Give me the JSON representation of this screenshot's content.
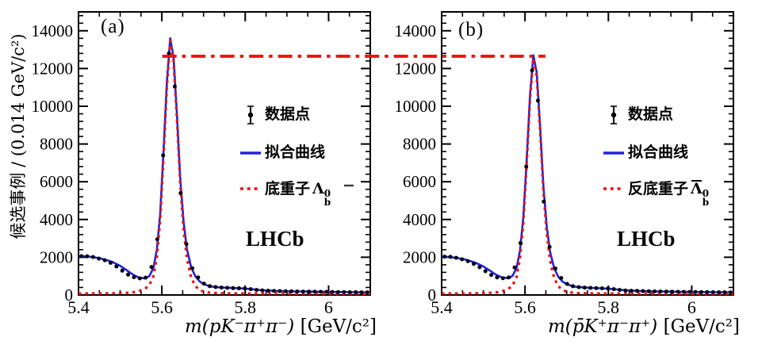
{
  "figure": {
    "background": "#ffffff",
    "frame_color": "#000000",
    "fit_blue": "#2222dd",
    "signal_red": "#ee1111",
    "data_black": "#000000"
  },
  "reference_line": {
    "style": "dash-dot",
    "color": "#ee1111",
    "y_value": 12650,
    "start": {
      "panel": 0,
      "x": 5.601
    },
    "end": {
      "panel": 1,
      "x": 5.649
    }
  },
  "chart_data": [
    {
      "type": "line",
      "panel_label": "(a)",
      "experiment": "LHCb",
      "xlabel_math": "m(pK⁻π⁺π⁻)",
      "xlabel_unit": " [GeV/c²]",
      "ylabel": "候选事例 / (0.014 GeV/c²)",
      "xlim": [
        5.4,
        6.1
      ],
      "ylim": [
        0,
        15000
      ],
      "x_major_ticks": [
        5.4,
        5.6,
        5.8,
        6.0
      ],
      "x_tick_labels": [
        "5.4",
        "5.6",
        "5.8",
        "6"
      ],
      "x_minor_step": 0.05,
      "y_major_step": 2000,
      "y_minor_step": 400,
      "grid": false,
      "legend_position": "center-right",
      "legend": [
        {
          "marker": "point-error",
          "color": "#000000",
          "label": "数据点"
        },
        {
          "marker": "solid-line",
          "color": "#2222dd",
          "label": "拟合曲线"
        },
        {
          "marker": "dotted-line",
          "color": "#ee1111",
          "label_prefix": "底重子",
          "symbol": "Λ",
          "symbol_sup": "0",
          "symbol_sub": "b",
          "symbol_bar": false
        }
      ],
      "series": [
        {
          "name": "fit_total",
          "style": "solid",
          "color": "#2222dd",
          "x": [
            5.4,
            5.42,
            5.44,
            5.46,
            5.48,
            5.5,
            5.515,
            5.53,
            5.545,
            5.56,
            5.57,
            5.58,
            5.588,
            5.596,
            5.604,
            5.612,
            5.62,
            5.628,
            5.636,
            5.644,
            5.652,
            5.66,
            5.67,
            5.68,
            5.69,
            5.7,
            5.715,
            5.73,
            5.75,
            5.77,
            5.79,
            5.81,
            5.83,
            5.85,
            5.88,
            5.91,
            5.95,
            6.0,
            6.05,
            6.1
          ],
          "y": [
            2060,
            2040,
            1990,
            1900,
            1760,
            1540,
            1320,
            1090,
            920,
            880,
            1000,
            1450,
            2400,
            4300,
            7600,
            11300,
            13600,
            12600,
            9600,
            6200,
            3900,
            2450,
            1500,
            1000,
            730,
            580,
            460,
            415,
            390,
            370,
            350,
            320,
            275,
            240,
            210,
            195,
            180,
            165,
            150,
            140
          ]
        },
        {
          "name": "signal_lambda_b",
          "style": "dotted",
          "color": "#ee1111",
          "x": [
            5.4,
            5.42,
            5.44,
            5.46,
            5.48,
            5.5,
            5.515,
            5.53,
            5.545,
            5.56,
            5.57,
            5.58,
            5.588,
            5.596,
            5.604,
            5.612,
            5.62,
            5.628,
            5.636,
            5.644,
            5.652,
            5.66,
            5.67,
            5.68,
            5.69,
            5.7,
            5.715,
            5.73,
            5.75,
            5.77,
            5.79,
            5.81,
            5.83,
            5.85,
            5.88,
            5.91,
            5.95,
            6.0,
            6.05,
            6.1
          ],
          "y": [
            80,
            80,
            82,
            85,
            90,
            100,
            115,
            140,
            200,
            330,
            520,
            1000,
            2000,
            3950,
            7300,
            11100,
            13450,
            12400,
            9400,
            5900,
            3500,
            1950,
            950,
            480,
            270,
            180,
            120,
            100,
            90,
            85,
            82,
            80,
            78,
            76,
            74,
            72,
            70,
            68,
            66,
            65
          ]
        },
        {
          "name": "data_points",
          "style": "points",
          "color": "#000000",
          "x": [
            5.407,
            5.421,
            5.435,
            5.449,
            5.463,
            5.477,
            5.491,
            5.505,
            5.519,
            5.533,
            5.547,
            5.561,
            5.575,
            5.589,
            5.603,
            5.617,
            5.631,
            5.645,
            5.659,
            5.673,
            5.687,
            5.701,
            5.715,
            5.729,
            5.743,
            5.757,
            5.771,
            5.785,
            5.799,
            5.813,
            5.827,
            5.841,
            5.855,
            5.869,
            5.883,
            5.897,
            5.911,
            5.925,
            5.939,
            5.953,
            5.967,
            5.981,
            5.995,
            6.009,
            6.023,
            6.037,
            6.051,
            6.065,
            6.079,
            6.093
          ],
          "y": [
            2060,
            2050,
            2010,
            1930,
            1840,
            1700,
            1510,
            1290,
            1080,
            940,
            880,
            920,
            1480,
            2950,
            7400,
            12800,
            11050,
            5400,
            2700,
            1420,
            930,
            600,
            470,
            420,
            395,
            380,
            365,
            355,
            345,
            310,
            270,
            240,
            225,
            215,
            205,
            198,
            192,
            186,
            181,
            176,
            171,
            167,
            162,
            158,
            154,
            151,
            148,
            145,
            142,
            140
          ]
        }
      ]
    },
    {
      "type": "line",
      "panel_label": "(b)",
      "experiment": "LHCb",
      "xlabel_math": "m(p̄K⁺π⁻π⁺)",
      "xlabel_unit": " [GeV/c²]",
      "ylabel": "",
      "xlim": [
        5.4,
        6.1
      ],
      "ylim": [
        0,
        15000
      ],
      "x_major_ticks": [
        5.4,
        5.6,
        5.8,
        6.0
      ],
      "x_tick_labels": [
        "5.4",
        "5.6",
        "5.8",
        "6"
      ],
      "x_minor_step": 0.05,
      "y_major_step": 2000,
      "y_minor_step": 400,
      "grid": false,
      "legend_position": "center-right",
      "legend": [
        {
          "marker": "point-error",
          "color": "#000000",
          "label": "数据点"
        },
        {
          "marker": "solid-line",
          "color": "#2222dd",
          "label": "拟合曲线"
        },
        {
          "marker": "dotted-line",
          "color": "#ee1111",
          "label_prefix": "反底重子",
          "symbol": "Λ",
          "symbol_sup": "0",
          "symbol_sub": "b",
          "symbol_bar": true
        }
      ],
      "series": [
        {
          "name": "fit_total",
          "style": "solid",
          "color": "#2222dd",
          "x": [
            5.4,
            5.42,
            5.44,
            5.46,
            5.48,
            5.5,
            5.515,
            5.53,
            5.545,
            5.56,
            5.57,
            5.58,
            5.588,
            5.596,
            5.604,
            5.612,
            5.62,
            5.628,
            5.636,
            5.644,
            5.652,
            5.66,
            5.67,
            5.68,
            5.69,
            5.7,
            5.715,
            5.73,
            5.75,
            5.77,
            5.79,
            5.81,
            5.83,
            5.85,
            5.88,
            5.91,
            5.95,
            6.0,
            6.05,
            6.1
          ],
          "y": [
            2030,
            2010,
            1950,
            1860,
            1720,
            1510,
            1300,
            1080,
            930,
            890,
            1010,
            1440,
            2350,
            4100,
            7100,
            10600,
            12700,
            11800,
            9000,
            5800,
            3650,
            2300,
            1420,
            960,
            710,
            570,
            455,
            410,
            385,
            365,
            345,
            315,
            270,
            238,
            208,
            193,
            178,
            163,
            149,
            139
          ]
        },
        {
          "name": "signal_antilambda_b",
          "style": "dotted",
          "color": "#ee1111",
          "x": [
            5.4,
            5.42,
            5.44,
            5.46,
            5.48,
            5.5,
            5.515,
            5.53,
            5.545,
            5.56,
            5.57,
            5.58,
            5.588,
            5.596,
            5.604,
            5.612,
            5.62,
            5.628,
            5.636,
            5.644,
            5.652,
            5.66,
            5.67,
            5.68,
            5.69,
            5.7,
            5.715,
            5.73,
            5.75,
            5.77,
            5.79,
            5.81,
            5.83,
            5.85,
            5.88,
            5.91,
            5.95,
            6.0,
            6.05,
            6.1
          ],
          "y": [
            78,
            78,
            80,
            83,
            88,
            98,
            112,
            136,
            195,
            320,
            505,
            960,
            1950,
            3800,
            6900,
            10400,
            12550,
            11600,
            8800,
            5550,
            3300,
            1830,
            900,
            460,
            260,
            175,
            118,
            98,
            88,
            83,
            80,
            78,
            76,
            74,
            72,
            70,
            68,
            66,
            64,
            63
          ]
        },
        {
          "name": "data_points",
          "style": "points",
          "color": "#000000",
          "x": [
            5.407,
            5.421,
            5.435,
            5.449,
            5.463,
            5.477,
            5.491,
            5.505,
            5.519,
            5.533,
            5.547,
            5.561,
            5.575,
            5.589,
            5.603,
            5.617,
            5.631,
            5.645,
            5.659,
            5.673,
            5.687,
            5.701,
            5.715,
            5.729,
            5.743,
            5.757,
            5.771,
            5.785,
            5.799,
            5.813,
            5.827,
            5.841,
            5.855,
            5.869,
            5.883,
            5.897,
            5.911,
            5.925,
            5.939,
            5.953,
            5.967,
            5.981,
            5.995,
            6.009,
            6.023,
            6.037,
            6.051,
            6.065,
            6.079,
            6.093
          ],
          "y": [
            2030,
            2020,
            1970,
            1890,
            1790,
            1650,
            1470,
            1260,
            1060,
            930,
            890,
            930,
            1460,
            2750,
            6800,
            11900,
            10300,
            4950,
            2550,
            1400,
            900,
            590,
            465,
            415,
            390,
            375,
            362,
            352,
            342,
            308,
            268,
            238,
            223,
            213,
            203,
            196,
            190,
            184,
            179,
            174,
            169,
            165,
            161,
            157,
            153,
            150,
            147,
            144,
            141,
            139
          ]
        }
      ]
    }
  ]
}
